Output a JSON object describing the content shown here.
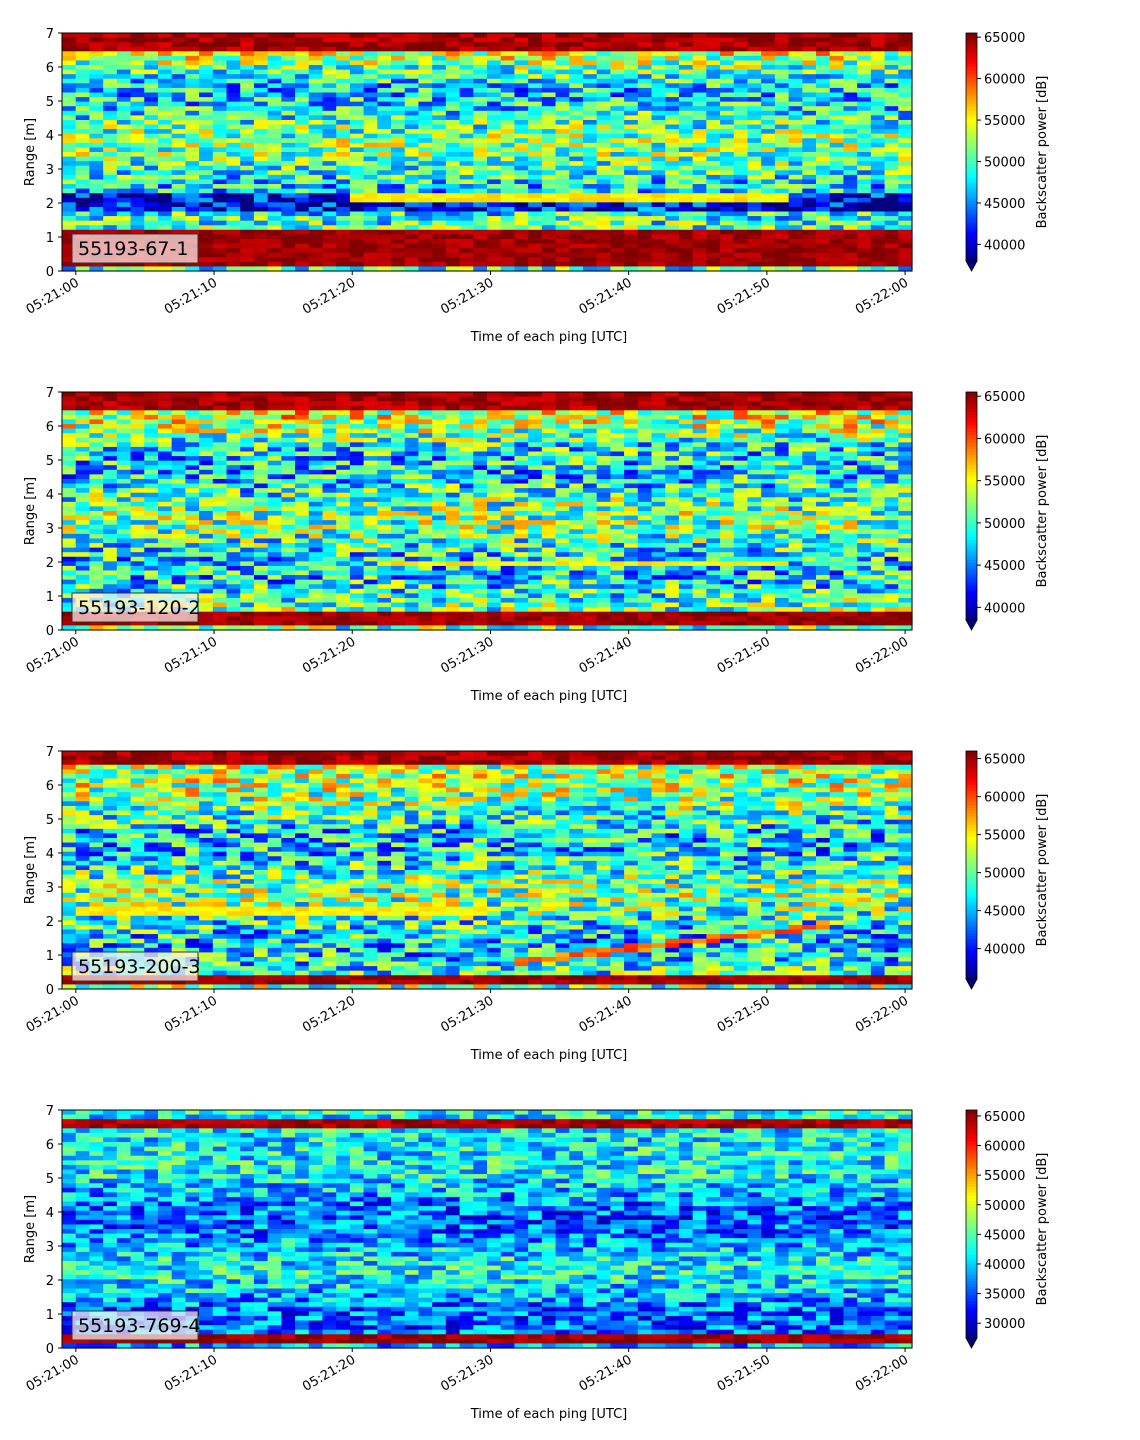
{
  "chart_data": [
    {
      "type": "heatmap",
      "label": "55193-67-1",
      "xlabel": "Time of each ping [UTC]",
      "ylabel": "Range [m]",
      "xticks": [
        "05:21:00",
        "05:21:10",
        "05:21:20",
        "05:21:30",
        "05:21:40",
        "05:21:50",
        "05:22:00"
      ],
      "xlim_seconds": [
        -1,
        60.5
      ],
      "yticks": [
        0,
        1,
        2,
        3,
        4,
        5,
        6,
        7
      ],
      "ylim": [
        0,
        7
      ],
      "colorbar": {
        "label": "Backscatter power [dB]",
        "ticks": [
          40000,
          45000,
          50000,
          55000,
          60000,
          65000
        ],
        "vmin": 38000,
        "vmax": 65500,
        "extend": "min",
        "colormap": "jet"
      },
      "features": {
        "top_band_m": [
          6.45,
          7.0
        ],
        "bottom_band_m": [
          0.2,
          1.15
        ],
        "streak": {
          "m": 2.2,
          "from_s": 20,
          "to_s": 52
        },
        "dark_band_m": 2.0,
        "noise_level": 0.45
      }
    },
    {
      "type": "heatmap",
      "label": "55193-120-2",
      "xlabel": "Time of each ping [UTC]",
      "ylabel": "Range [m]",
      "xticks": [
        "05:21:00",
        "05:21:10",
        "05:21:20",
        "05:21:30",
        "05:21:40",
        "05:21:50",
        "05:22:00"
      ],
      "xlim_seconds": [
        -1,
        60.5
      ],
      "yticks": [
        0,
        1,
        2,
        3,
        4,
        5,
        6,
        7
      ],
      "ylim": [
        0,
        7
      ],
      "colorbar": {
        "label": "Backscatter power [dB]",
        "ticks": [
          40000,
          45000,
          50000,
          55000,
          60000,
          65000
        ],
        "vmin": 38500,
        "vmax": 65500,
        "extend": "min",
        "colormap": "jet"
      },
      "features": {
        "top_band_m": [
          6.5,
          7.0
        ],
        "bottom_band_m": [
          0.1,
          0.5
        ],
        "streak": {
          "m": 1.95,
          "from_s": 22,
          "to_s": 52
        },
        "noise_level": 0.5
      }
    },
    {
      "type": "heatmap",
      "label": "55193-200-3",
      "xlabel": "Time of each ping [UTC]",
      "ylabel": "Range [m]",
      "xticks": [
        "05:21:00",
        "05:21:10",
        "05:21:20",
        "05:21:30",
        "05:21:40",
        "05:21:50",
        "05:22:00"
      ],
      "xlim_seconds": [
        -1,
        60.5
      ],
      "yticks": [
        0,
        1,
        2,
        3,
        4,
        5,
        6,
        7
      ],
      "ylim": [
        0,
        7
      ],
      "colorbar": {
        "label": "Backscatter power [dB]",
        "ticks": [
          40000,
          45000,
          50000,
          55000,
          60000,
          65000
        ],
        "vmin": 36000,
        "vmax": 66000,
        "extend": "min",
        "colormap": "jet"
      },
      "features": {
        "top_band_m": [
          6.55,
          7.0
        ],
        "bottom_band_m": [
          0.1,
          0.35
        ],
        "streak": {
          "m": 2.3,
          "from_s": 0,
          "to_s": 30
        },
        "diagonal": {
          "from_s": 32,
          "from_m": 0.8,
          "to_s": 55,
          "to_m": 1.9
        },
        "noise_level": 0.5
      }
    },
    {
      "type": "heatmap",
      "label": "55193-769-4",
      "xlabel": "Time of each ping [UTC]",
      "ylabel": "Range [m]",
      "xticks": [
        "05:21:00",
        "05:21:10",
        "05:21:20",
        "05:21:30",
        "05:21:40",
        "05:21:50",
        "05:22:00"
      ],
      "xlim_seconds": [
        -1,
        60.5
      ],
      "yticks": [
        0,
        1,
        2,
        3,
        4,
        5,
        6,
        7
      ],
      "ylim": [
        0,
        7
      ],
      "colorbar": {
        "label": "Backscatter power [dB]",
        "ticks": [
          30000,
          35000,
          40000,
          45000,
          50000,
          55000,
          60000,
          65000
        ],
        "vmin": 27500,
        "vmax": 66000,
        "extend": "min",
        "colormap": "jet"
      },
      "features": {
        "top_band_m": [
          6.45,
          6.75
        ],
        "bottom_band_m": [
          0.15,
          0.35
        ],
        "noise_level": 0.35,
        "base_level": 0.3
      }
    }
  ]
}
